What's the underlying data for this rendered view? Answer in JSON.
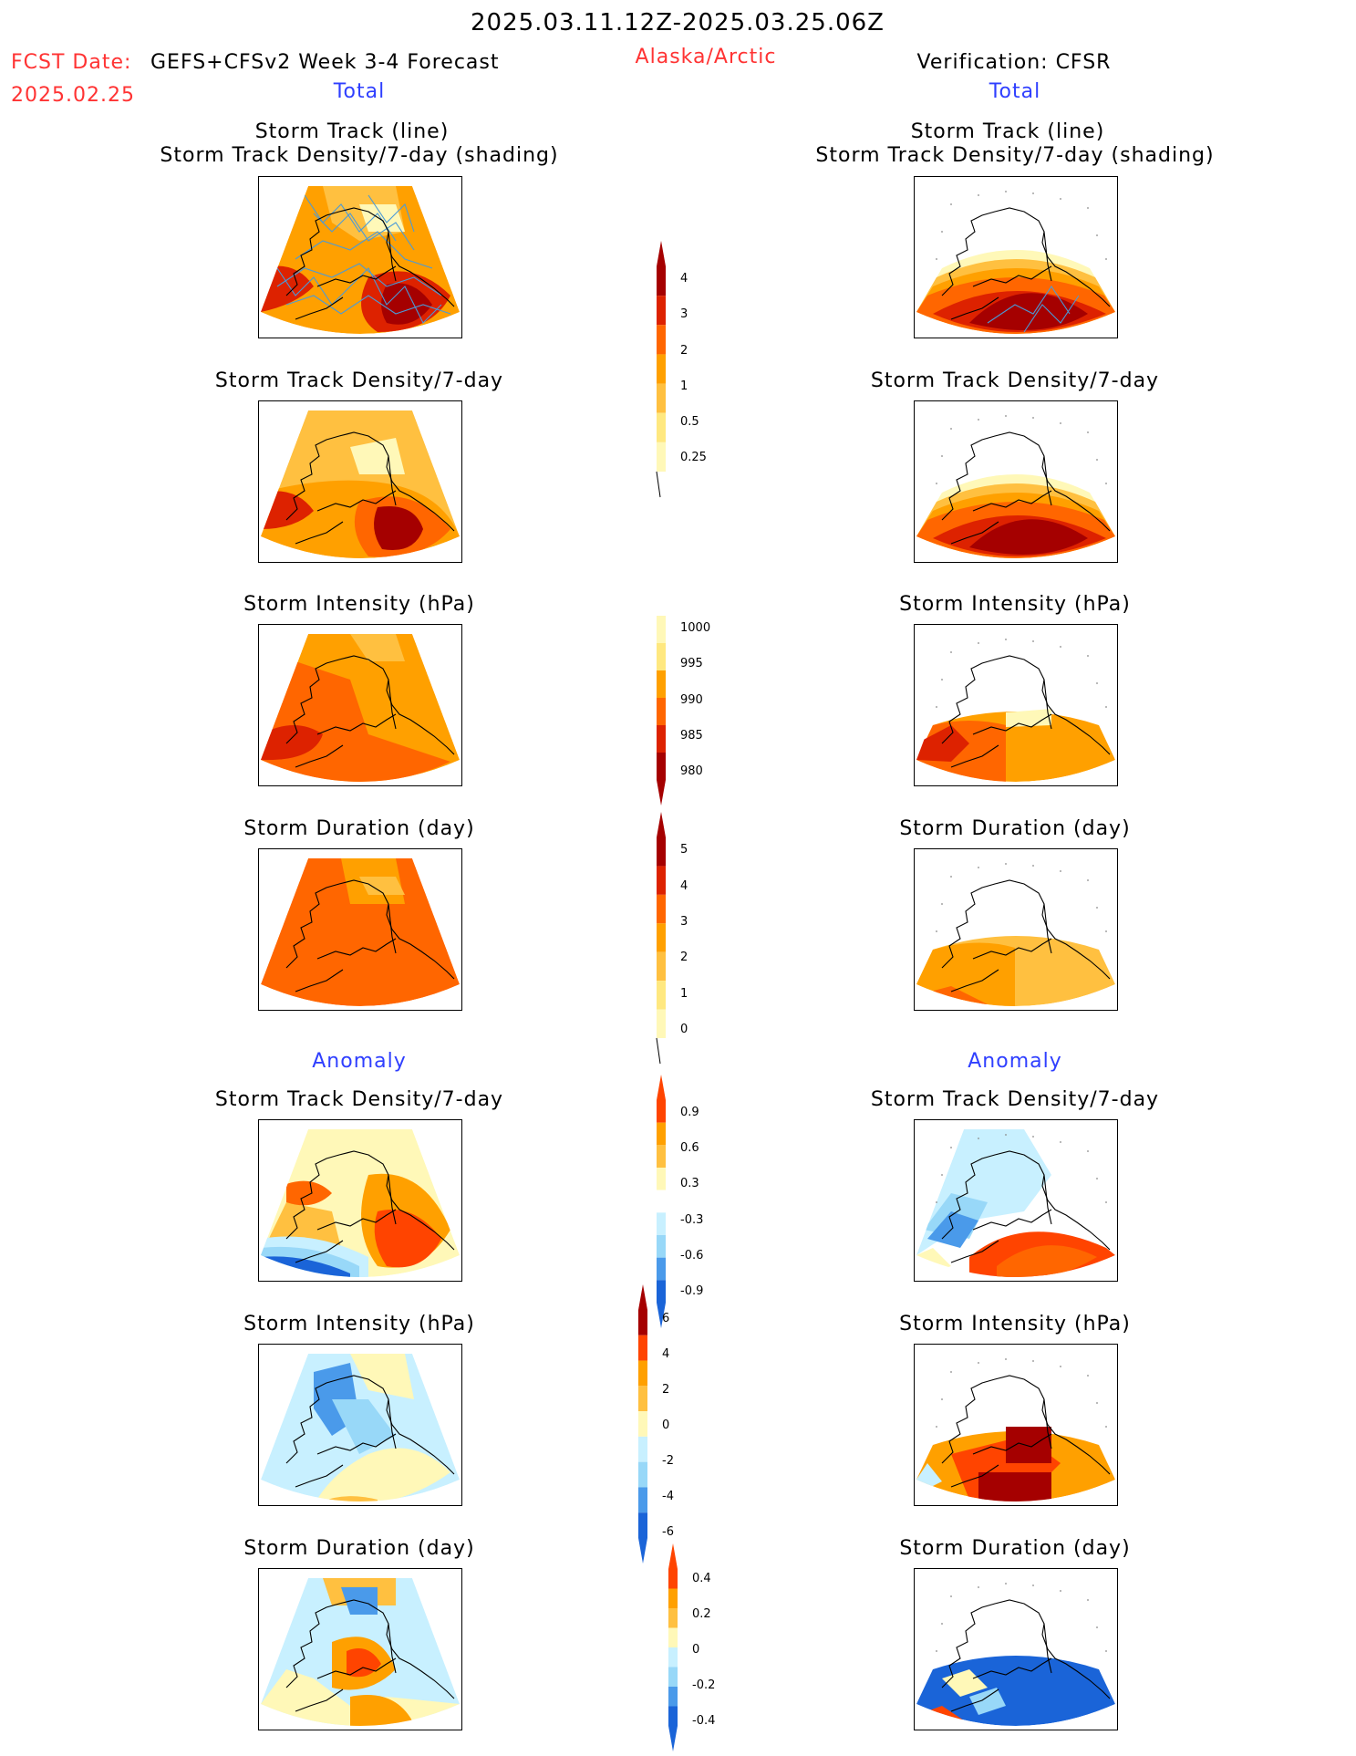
{
  "header": {
    "period": "2025.03.11.12Z-2025.03.25.06Z",
    "fcst_date_label": "FCST Date:",
    "fcst_date": "2025.02.25",
    "model": "GEFS+CFSv2 Week 3-4 Forecast",
    "region": "Alaska/Arctic",
    "verification": "Verification: CFSR"
  },
  "sections": {
    "total": "Total",
    "anomaly": "Anomaly"
  },
  "titles": {
    "track_line": "Storm Track (line)",
    "track_shading": "Storm Track Density/7-day (shading)",
    "track_density": "Storm Track Density/7-day",
    "intensity": "Storm Intensity (hPa)",
    "duration": "Storm Duration (day)"
  },
  "colorbars": {
    "density": [
      "4",
      "3",
      "2",
      "1",
      "0.5",
      "0.25"
    ],
    "intensity": [
      "1000",
      "995",
      "990",
      "985",
      "980"
    ],
    "duration": [
      "5",
      "4",
      "3",
      "2",
      "1",
      "0"
    ],
    "density_anom": [
      "0.9",
      "0.6",
      "0.3",
      "-0.3",
      "-0.6",
      "-0.9"
    ],
    "intensity_anom": [
      "6",
      "4",
      "2",
      "0",
      "-2",
      "-4",
      "-6"
    ],
    "duration_anom": [
      "0.4",
      "0.2",
      "0",
      "-0.2",
      "-0.4"
    ]
  },
  "colors": {
    "dark_red": "#a50000",
    "red": "#dd2200",
    "red_orange": "#ff4400",
    "orange_dark": "#ff6600",
    "orange": "#ffa000",
    "light_orange": "#ffc040",
    "yellow": "#ffe880",
    "pale_yellow": "#fff8b8",
    "light_blue": "#c8f0ff",
    "sky_blue": "#98d8f8",
    "blue": "#4a9aea",
    "dark_blue": "#1a64d8",
    "track_line": "#4a9ad8"
  }
}
